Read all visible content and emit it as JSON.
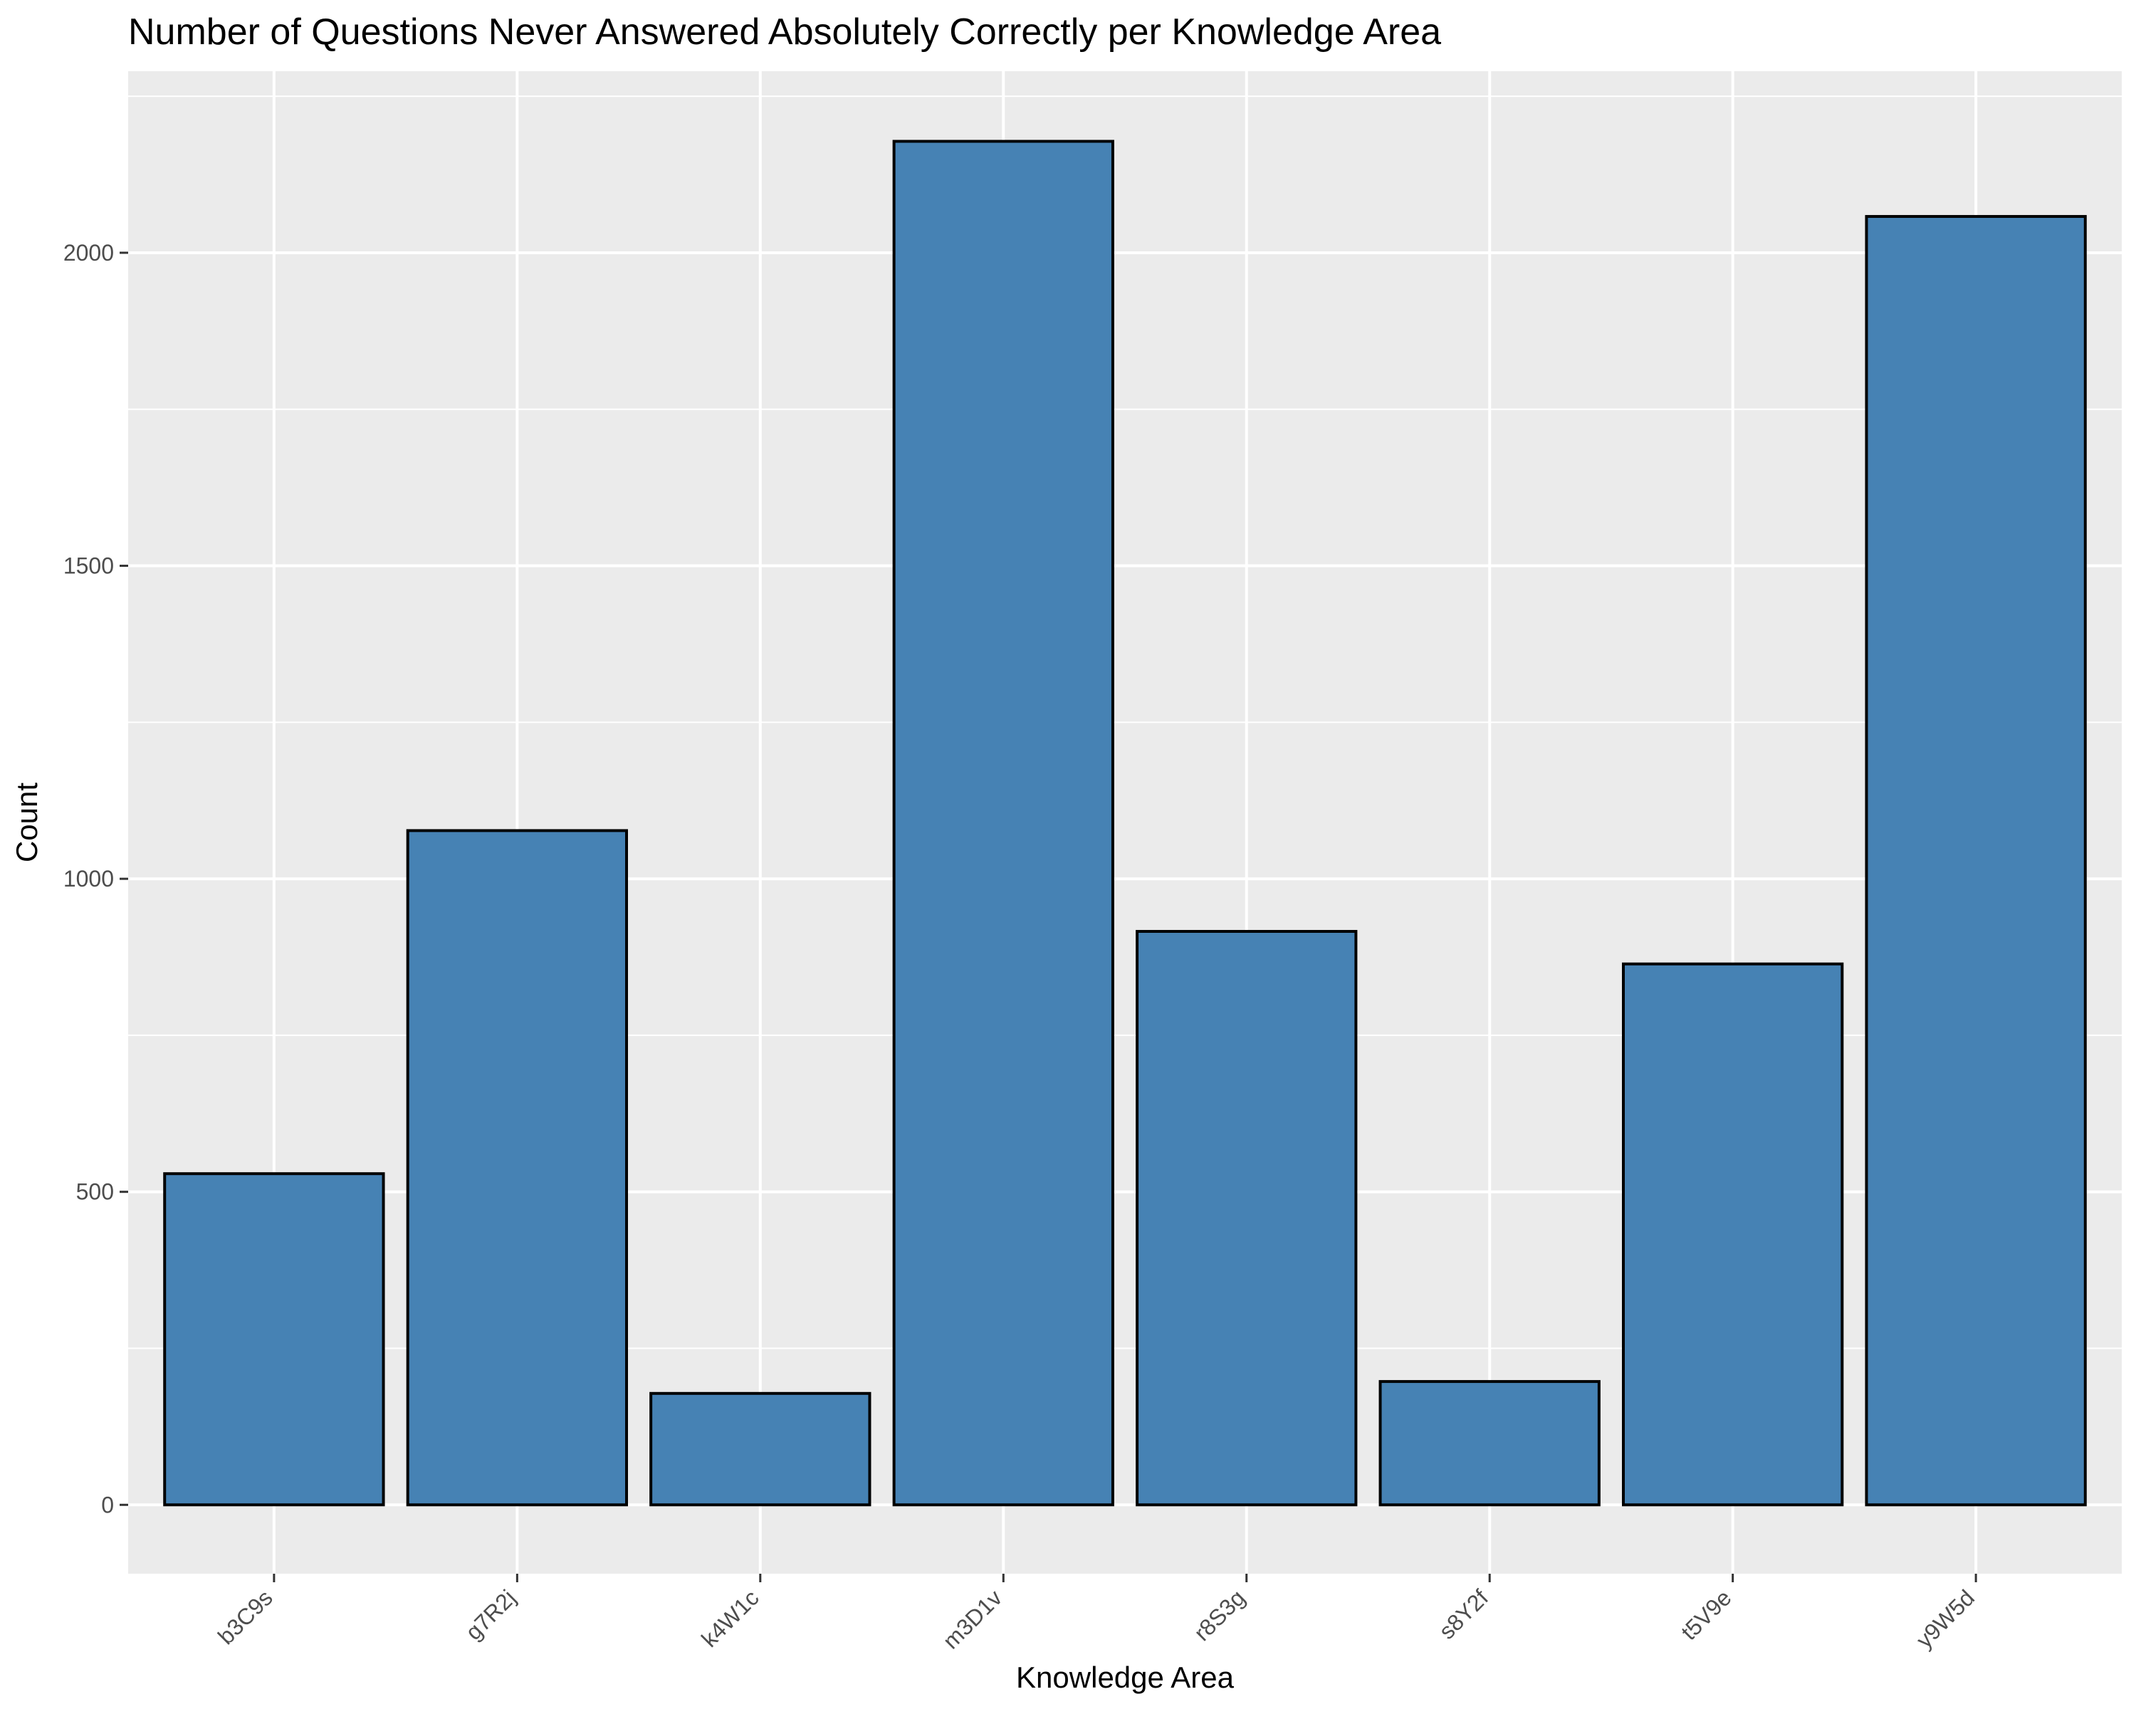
{
  "chart_data": {
    "type": "bar",
    "title": "Number of Questions Never Answered Absolutely Correctly per Knowledge Area",
    "xlabel": "Knowledge Area",
    "ylabel": "Count",
    "categories": [
      "b3C9s",
      "g7R2j",
      "k4W1c",
      "m3D1v",
      "r8S3g",
      "s8Y2f",
      "t5V9e",
      "y9W5d"
    ],
    "values": [
      529,
      1077,
      178,
      2178,
      916,
      197,
      864,
      2058
    ],
    "ylim": [
      -110,
      2290
    ],
    "yticks": [
      0,
      500,
      1000,
      1500,
      2000
    ],
    "ytick_labels": [
      "0",
      "500",
      "1000",
      "1500",
      "2000"
    ],
    "grid": true,
    "legend": "none",
    "colors": {
      "bar_fill": "#4682B4",
      "bar_stroke": "#000000",
      "panel_bg": "#EBEBEB",
      "grid_major": "#FFFFFF",
      "tick_text": "#4D4D4D"
    }
  }
}
